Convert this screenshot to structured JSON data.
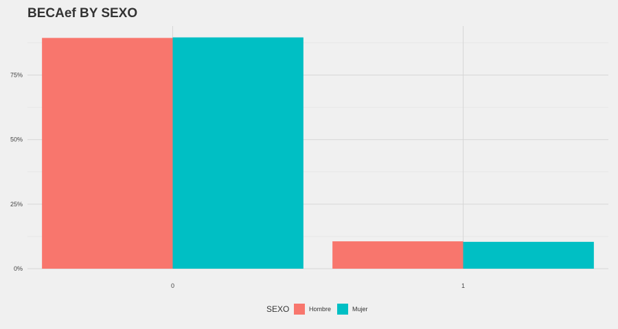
{
  "chart_data": {
    "type": "bar",
    "title": "BECAef BY SEXO",
    "xlabel": "",
    "ylabel": "",
    "categories": [
      "0",
      "1"
    ],
    "series": [
      {
        "name": "Hombre",
        "values": [
          0.894,
          0.106
        ],
        "color": "#F8766D"
      },
      {
        "name": "Mujer",
        "values": [
          0.896,
          0.104
        ],
        "color": "#00BFC4"
      }
    ],
    "ylim": [
      0,
      0.94
    ],
    "y_ticks": [
      {
        "value": 0,
        "label": "0%"
      },
      {
        "value": 0.25,
        "label": "25%"
      },
      {
        "value": 0.5,
        "label": "50%"
      },
      {
        "value": 0.75,
        "label": "75%"
      }
    ],
    "grid": true,
    "legend": {
      "title": "SEXO",
      "position": "bottom"
    }
  },
  "colors": {
    "background": "#f0f0f0",
    "grid_major": "#d6d6d6",
    "grid_minor": "#e4e4e4"
  }
}
